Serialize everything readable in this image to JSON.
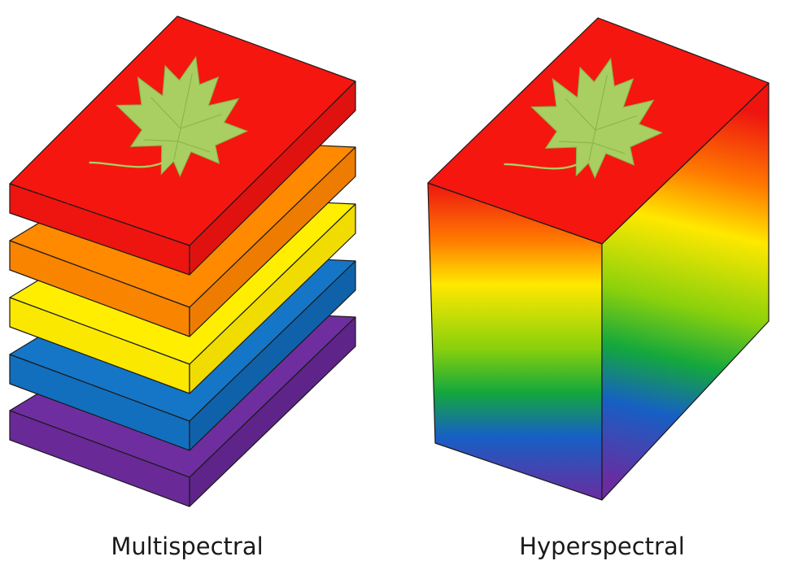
{
  "figure": {
    "left_label": "Multispectral",
    "right_label": "Hyperspectral"
  },
  "multispectral_layers": [
    {
      "name": "red",
      "top": "#f5160f",
      "side": "#ee1410"
    },
    {
      "name": "orange",
      "top": "#ff8a00",
      "side": "#f98400"
    },
    {
      "name": "yellow",
      "top": "#ffee00",
      "side": "#fbe800"
    },
    {
      "name": "blue",
      "top": "#1576c7",
      "side": "#116fbe"
    },
    {
      "name": "purple",
      "top": "#6f2ea0",
      "side": "#692997"
    }
  ],
  "hyperspectral_gradient": [
    "#ee1410",
    "#ff7a00",
    "#ffe800",
    "#8bd10c",
    "#14a83c",
    "#1660c4",
    "#6a2ca0"
  ],
  "leaf_color": "#a9cf63",
  "outline_color": "#1a1a1a"
}
